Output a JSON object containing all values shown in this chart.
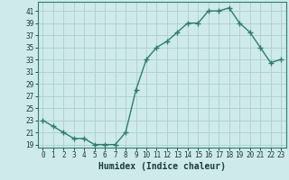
{
  "xlabel": "Humidex (Indice chaleur)",
  "x": [
    0,
    1,
    2,
    3,
    4,
    5,
    6,
    7,
    8,
    9,
    10,
    11,
    12,
    13,
    14,
    15,
    16,
    17,
    18,
    19,
    20,
    21,
    22,
    23
  ],
  "y": [
    23,
    22,
    21,
    20,
    20,
    19,
    19,
    19,
    21,
    28,
    33,
    35,
    36,
    37.5,
    39,
    39,
    41,
    41,
    41.5,
    39,
    37.5,
    35,
    32.5,
    33
  ],
  "line_color": "#2e7d6e",
  "marker": "+",
  "marker_size": 4,
  "bg_color": "#ceeaea",
  "grid_color": "#aecece",
  "ylim": [
    18.5,
    42.5
  ],
  "yticks": [
    19,
    21,
    23,
    25,
    27,
    29,
    31,
    33,
    35,
    37,
    39,
    41
  ],
  "xlim": [
    -0.5,
    23.5
  ],
  "xticks": [
    0,
    1,
    2,
    3,
    4,
    5,
    6,
    7,
    8,
    9,
    10,
    11,
    12,
    13,
    14,
    15,
    16,
    17,
    18,
    19,
    20,
    21,
    22,
    23
  ],
  "tick_fontsize": 5.5,
  "xlabel_fontsize": 7,
  "line_width": 1.0,
  "fig_width": 3.2,
  "fig_height": 2.0,
  "dpi": 100
}
